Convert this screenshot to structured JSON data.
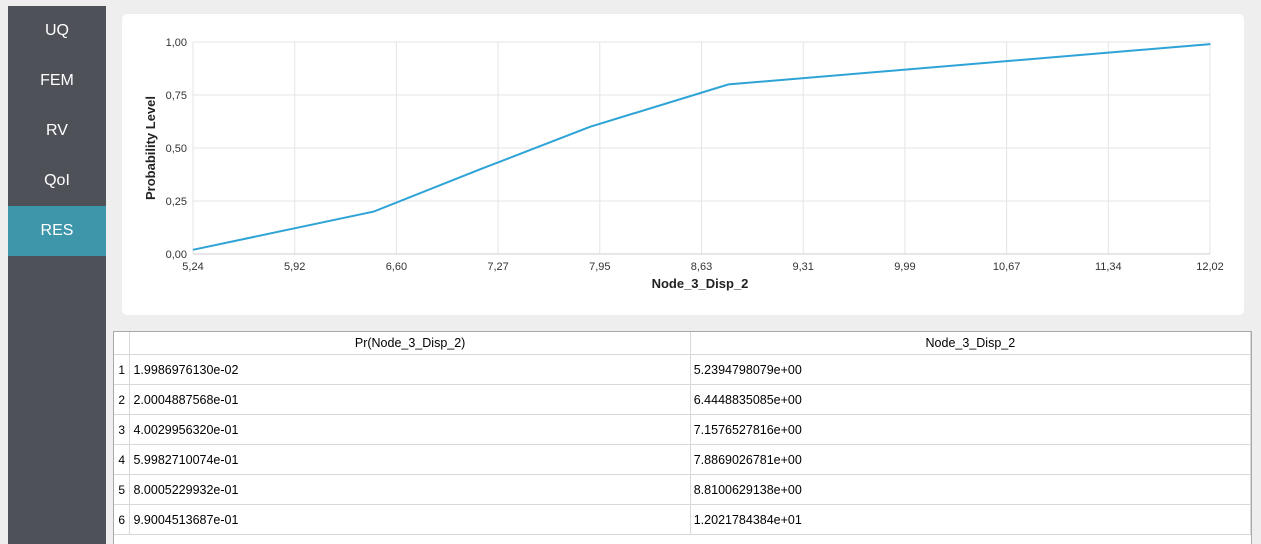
{
  "sidebar": {
    "items": [
      {
        "label": "UQ",
        "active": false
      },
      {
        "label": "FEM",
        "active": false
      },
      {
        "label": "RV",
        "active": false
      },
      {
        "label": "QoI",
        "active": false
      },
      {
        "label": "RES",
        "active": true
      }
    ]
  },
  "colors": {
    "accent": "#3d96aa",
    "series": "#2ea3d6",
    "sidebar": "#4e5158"
  },
  "chart_data": {
    "type": "line",
    "xlabel": "Node_3_Disp_2",
    "ylabel": "Probability Level",
    "x_ticks": [
      "5,24",
      "5,92",
      "6,60",
      "7,27",
      "7,95",
      "8,63",
      "9,31",
      "9,99",
      "10,67",
      "11,34",
      "12,02"
    ],
    "y_ticks": [
      "0,00",
      "0,25",
      "0,50",
      "0,75",
      "1,00"
    ],
    "xlim": [
      5.24,
      12.02
    ],
    "ylim": [
      0,
      1
    ],
    "grid": true,
    "series": [
      {
        "x": [
          5.2395,
          6.4449,
          7.1577,
          7.8869,
          8.8101,
          12.0218
        ],
        "y": [
          0.01999,
          0.20005,
          0.4003,
          0.59983,
          0.80005,
          0.99005
        ]
      }
    ]
  },
  "table": {
    "headers": [
      "Pr(Node_3_Disp_2)",
      "Node_3_Disp_2"
    ],
    "rows": [
      {
        "n": "1",
        "c1": "1.9986976130e-02",
        "c2": "5.2394798079e+00"
      },
      {
        "n": "2",
        "c1": "2.0004887568e-01",
        "c2": "6.4448835085e+00"
      },
      {
        "n": "3",
        "c1": "4.0029956320e-01",
        "c2": "7.1576527816e+00"
      },
      {
        "n": "4",
        "c1": "5.9982710074e-01",
        "c2": "7.8869026781e+00"
      },
      {
        "n": "5",
        "c1": "8.0005229932e-01",
        "c2": "8.8100629138e+00"
      },
      {
        "n": "6",
        "c1": "9.9004513687e-01",
        "c2": "1.2021784384e+01"
      }
    ]
  }
}
